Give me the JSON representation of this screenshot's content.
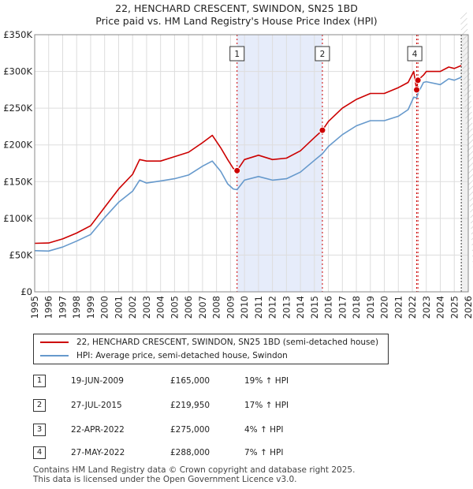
{
  "chart_data": {
    "type": "line",
    "title": "22, HENCHARD CRESCENT, SWINDON, SN25 1BD",
    "subtitle": "Price paid vs. HM Land Registry's House Price Index (HPI)",
    "xlim": [
      1995,
      2026
    ],
    "ylim": [
      0,
      350000
    ],
    "y_ticks": [
      {
        "value": 0,
        "label": "£0"
      },
      {
        "value": 50000,
        "label": "£50K"
      },
      {
        "value": 100000,
        "label": "£100K"
      },
      {
        "value": 150000,
        "label": "£150K"
      },
      {
        "value": 200000,
        "label": "£200K"
      },
      {
        "value": 250000,
        "label": "£250K"
      },
      {
        "value": 300000,
        "label": "£300K"
      },
      {
        "value": 350000,
        "label": "£350K"
      }
    ],
    "x_ticks": [
      "1995",
      "1996",
      "1997",
      "1998",
      "1999",
      "2000",
      "2001",
      "2002",
      "2003",
      "2004",
      "2005",
      "2006",
      "2007",
      "2008",
      "2009",
      "2010",
      "2011",
      "2012",
      "2013",
      "2014",
      "2015",
      "2016",
      "2017",
      "2018",
      "2019",
      "2020",
      "2021",
      "2022",
      "2023",
      "2024",
      "2025",
      "2026"
    ],
    "grid": true,
    "series": [
      {
        "name": "22, HENCHARD CRESCENT, SWINDON, SN25 1BD (semi-detached house)",
        "color": "#cc0000",
        "x": [
          1995,
          1996,
          1997,
          1998,
          1999,
          2000,
          2001,
          2002,
          2002.5,
          2003,
          2004,
          2005,
          2006,
          2007,
          2007.7,
          2008.3,
          2008.8,
          2009.2,
          2009.47,
          2010,
          2011,
          2012,
          2013,
          2014,
          2015,
          2015.57,
          2016,
          2017,
          2018,
          2019,
          2020,
          2021,
          2021.7,
          2022.1,
          2022.31,
          2022.4,
          2022.8,
          2023,
          2024,
          2024.6,
          2025,
          2025.5
        ],
        "values": [
          66000,
          66500,
          72000,
          80000,
          90000,
          115000,
          140000,
          160000,
          180000,
          178000,
          178000,
          184000,
          190000,
          203000,
          213000,
          196000,
          180000,
          168000,
          165000,
          180000,
          186000,
          180000,
          182000,
          192000,
          210000,
          219950,
          232000,
          250000,
          262000,
          270000,
          270000,
          278000,
          285000,
          300000,
          275000,
          288000,
          295000,
          300000,
          300000,
          306000,
          304000,
          308000
        ]
      },
      {
        "name": "HPI: Average price, semi-detached house, Swindon",
        "color": "#6699cc",
        "x": [
          1995,
          1996,
          1997,
          1998,
          1999,
          2000,
          2001,
          2002,
          2002.5,
          2003,
          2004,
          2005,
          2006,
          2007,
          2007.7,
          2008.3,
          2008.8,
          2009.2,
          2009.47,
          2010,
          2011,
          2012,
          2013,
          2014,
          2015,
          2015.57,
          2016,
          2017,
          2018,
          2019,
          2020,
          2021,
          2021.7,
          2022.1,
          2022.31,
          2022.4,
          2022.8,
          2023,
          2024,
          2024.6,
          2025,
          2025.5
        ],
        "values": [
          56000,
          55500,
          61000,
          69000,
          78000,
          101000,
          122000,
          137000,
          152000,
          148000,
          151000,
          154000,
          159000,
          171000,
          178000,
          164000,
          147000,
          140000,
          139000,
          152000,
          157000,
          152000,
          154000,
          163000,
          179000,
          188000,
          198000,
          214000,
          226000,
          233000,
          233000,
          239000,
          248000,
          265000,
          264000,
          270000,
          285000,
          286000,
          282000,
          290000,
          288000,
          292000
        ]
      }
    ],
    "sales": [
      {
        "label": "1",
        "x": 2009.47,
        "value": 165000
      },
      {
        "label": "2",
        "x": 2015.57,
        "value": 219950
      },
      {
        "label": "3",
        "x": 2022.31,
        "value": 275000
      },
      {
        "label": "4",
        "x": 2022.4,
        "value": 288000
      }
    ],
    "shaded_range": [
      2009.47,
      2015.57
    ],
    "marker_labels_shown": [
      "1",
      "2",
      "4"
    ],
    "forecast_start": 2025.5
  },
  "legend": {
    "property": "22, HENCHARD CRESCENT, SWINDON, SN25 1BD (semi-detached house)",
    "hpi": "HPI: Average price, semi-detached house, Swindon"
  },
  "transactions": [
    {
      "num": "1",
      "date": "19-JUN-2009",
      "price": "£165,000",
      "hpi": "19% ↑ HPI"
    },
    {
      "num": "2",
      "date": "27-JUL-2015",
      "price": "£219,950",
      "hpi": "17% ↑ HPI"
    },
    {
      "num": "3",
      "date": "22-APR-2022",
      "price": "£275,000",
      "hpi": "4% ↑ HPI"
    },
    {
      "num": "4",
      "date": "27-MAY-2022",
      "price": "£288,000",
      "hpi": "7% ↑ HPI"
    }
  ],
  "footer": {
    "line1": "Contains HM Land Registry data © Crown copyright and database right 2025.",
    "line2": "This data is licensed under the Open Government Licence v3.0."
  }
}
